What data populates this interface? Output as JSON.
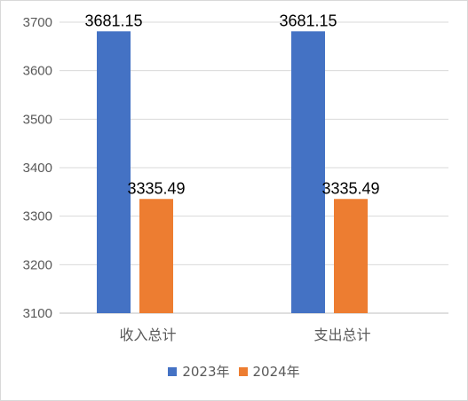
{
  "chart_data": {
    "type": "bar",
    "categories": [
      "收入总计",
      "支出总计"
    ],
    "series": [
      {
        "name": "2023年",
        "values": [
          3681.15,
          3681.15
        ],
        "color": "#4472c4"
      },
      {
        "name": "2024年",
        "values": [
          3335.49,
          3335.49
        ],
        "color": "#ed7d31"
      }
    ],
    "data_labels": [
      [
        "3681.15",
        "3681.15"
      ],
      [
        "3335.49",
        "3335.49"
      ]
    ],
    "yticks": [
      "3100",
      "3200",
      "3300",
      "3400",
      "3500",
      "3600",
      "3700"
    ],
    "ylim": [
      3100,
      3700
    ],
    "grid": true,
    "legend_position": "bottom",
    "title": "",
    "xlabel": "",
    "ylabel": ""
  }
}
